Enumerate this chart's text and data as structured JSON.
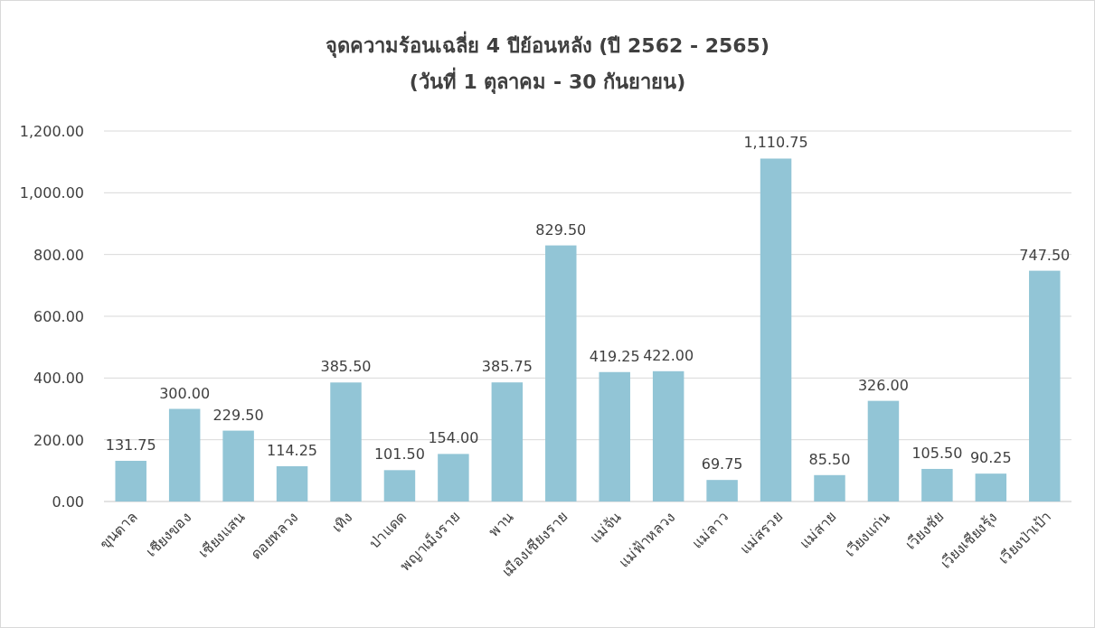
{
  "chart_data": {
    "type": "bar",
    "title": "จุดความร้อนเฉลี่ย 4 ปีย้อนหลัง (ปี 2562 - 2565)",
    "subtitle": "(วันที่ 1 ตุลาคม - 30 กันยายน)",
    "categories": [
      "ขุนตาล",
      "เชียงของ",
      "เชียงแสน",
      "ดอยหลวง",
      "เทิง",
      "ป่าแดด",
      "พญาเม็งราย",
      "พาน",
      "เมืองเชียงราย",
      "แม่จัน",
      "แม่ฟ้าหลวง",
      "แม่ลาว",
      "แม่สรวย",
      "แม่สาย",
      "เวียงแก่น",
      "เวียงชัย",
      "เวียงเชียงรุ้ง",
      "เวียงป่าเป้า"
    ],
    "values": [
      131.75,
      300.0,
      229.5,
      114.25,
      385.5,
      101.5,
      154.0,
      385.75,
      829.5,
      419.25,
      422.0,
      69.75,
      1110.75,
      85.5,
      326.0,
      105.5,
      90.25,
      747.5
    ],
    "value_labels": [
      "131.75",
      "300.00",
      "229.50",
      "114.25",
      "385.50",
      "101.50",
      "154.00",
      "385.75",
      "829.50",
      "419.25",
      "422.00",
      "69.75",
      "1,110.75",
      "85.50",
      "326.00",
      "105.50",
      "90.25",
      "747.50"
    ],
    "color": "#92c5d6",
    "ylim": [
      0,
      1200
    ],
    "yticks": [
      {
        "value": 0,
        "label": "0.00"
      },
      {
        "value": 200,
        "label": "200.00"
      },
      {
        "value": 400,
        "label": "400.00"
      },
      {
        "value": 600,
        "label": "600.00"
      },
      {
        "value": 800,
        "label": "800.00"
      },
      {
        "value": 1000,
        "label": "1,000.00"
      },
      {
        "value": 1200,
        "label": "1,200.00"
      }
    ],
    "grid": "y"
  }
}
